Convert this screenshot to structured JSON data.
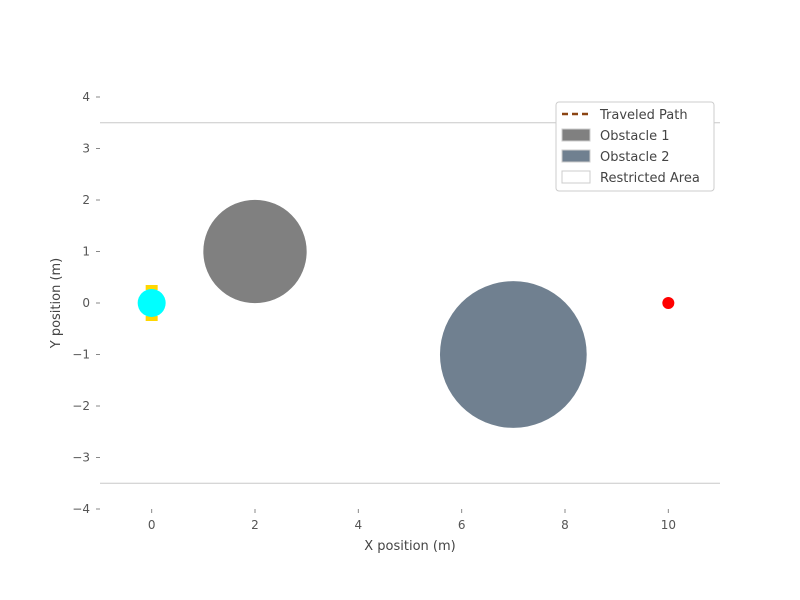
{
  "chart_data": {
    "type": "scatter",
    "title": "",
    "xlabel": "X position (m)",
    "ylabel": "Y position (m)",
    "xlim": [
      -1,
      11
    ],
    "ylim": [
      -4,
      4
    ],
    "xticks": [
      0,
      2,
      4,
      6,
      8,
      10
    ],
    "yticks": [
      -4,
      -3,
      -2,
      -1,
      0,
      1,
      2,
      3,
      4
    ],
    "xtick_labels": [
      "0",
      "2",
      "4",
      "6",
      "8",
      "10"
    ],
    "ytick_labels": [
      "−4",
      "−3",
      "−2",
      "−1",
      "0",
      "1",
      "2",
      "3",
      "4"
    ],
    "grid": false,
    "legend_position": "top-right",
    "restricted_boundaries": {
      "y_upper": 3.5,
      "y_lower": -3.5,
      "color": "#c8c8c8"
    },
    "obstacles": [
      {
        "name": "Obstacle 1",
        "center": [
          2,
          1
        ],
        "radius": 1.0,
        "color": "#808080"
      },
      {
        "name": "Obstacle 2",
        "center": [
          7,
          -1
        ],
        "radius": 1.42,
        "color": "#708090"
      }
    ],
    "robot": {
      "position": [
        0,
        0
      ],
      "body_color": "#00ffff",
      "wheel_color": "#ffd700"
    },
    "goal": {
      "position": [
        10,
        0
      ],
      "color": "#ff0000"
    },
    "traveled_path": {
      "points": [
        [
          0,
          0
        ]
      ],
      "color": "#8b4513",
      "style": "dashed"
    },
    "legend": [
      {
        "label": "Traveled Path",
        "kind": "line",
        "color": "#8b4513",
        "icon": "dashed-line-icon"
      },
      {
        "label": "Obstacle 1",
        "kind": "patch",
        "color": "#808080",
        "icon": "gray-patch-icon"
      },
      {
        "label": "Obstacle 2",
        "kind": "patch",
        "color": "#708090",
        "icon": "slate-patch-icon"
      },
      {
        "label": "Restricted Area",
        "kind": "patch",
        "color": "#ffffff",
        "icon": "white-patch-icon"
      }
    ]
  }
}
